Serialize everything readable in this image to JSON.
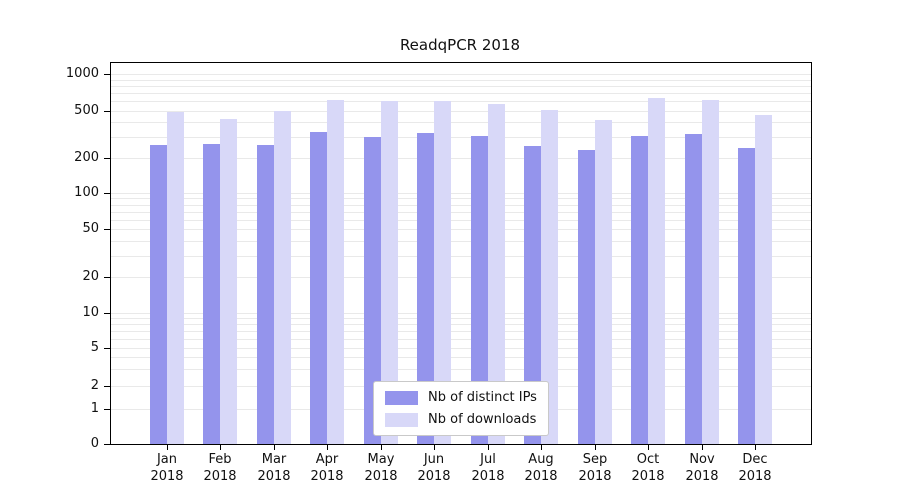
{
  "chart_data": {
    "type": "bar",
    "title": "ReadqPCR 2018",
    "xlabel": "",
    "ylabel": "",
    "yscale": "log-like",
    "grid": "horizontal minor log gridlines",
    "legend_position": "lower center",
    "yticks": [
      0,
      1,
      2,
      5,
      10,
      20,
      50,
      100,
      200,
      500,
      1000
    ],
    "ylim": [
      0,
      1200
    ],
    "categories": [
      {
        "month": "Jan",
        "year": "2018"
      },
      {
        "month": "Feb",
        "year": "2018"
      },
      {
        "month": "Mar",
        "year": "2018"
      },
      {
        "month": "Apr",
        "year": "2018"
      },
      {
        "month": "May",
        "year": "2018"
      },
      {
        "month": "Jun",
        "year": "2018"
      },
      {
        "month": "Jul",
        "year": "2018"
      },
      {
        "month": "Aug",
        "year": "2018"
      },
      {
        "month": "Sep",
        "year": "2018"
      },
      {
        "month": "Oct",
        "year": "2018"
      },
      {
        "month": "Nov",
        "year": "2018"
      },
      {
        "month": "Dec",
        "year": "2018"
      }
    ],
    "series": [
      {
        "name": "Nb of distinct IPs",
        "color": "#9494ec",
        "values": [
          260,
          265,
          260,
          330,
          300,
          325,
          310,
          255,
          235,
          310,
          320,
          245
        ]
      },
      {
        "name": "Nb of downloads",
        "color": "#d8d8f8",
        "values": [
          495,
          430,
          500,
          620,
          600,
          600,
          570,
          510,
          420,
          640,
          610,
          460
        ]
      }
    ]
  }
}
